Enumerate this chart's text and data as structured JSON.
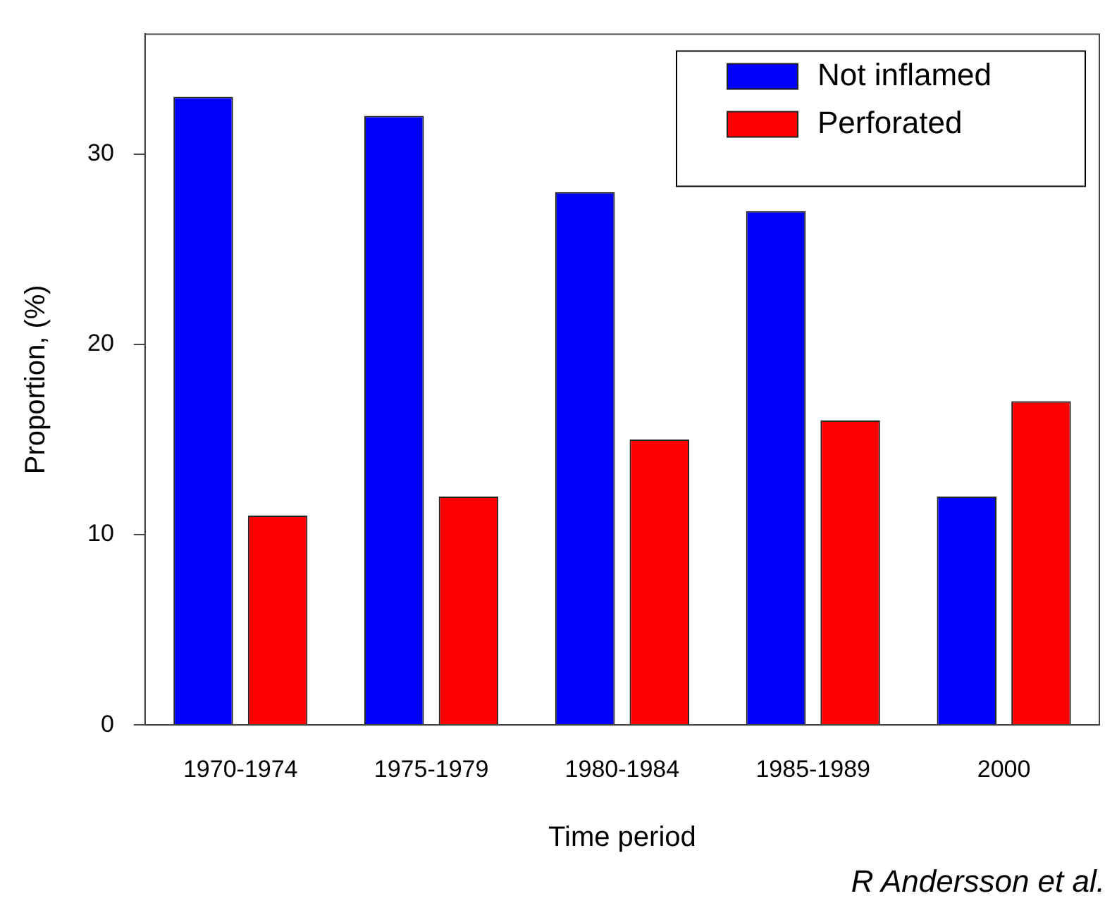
{
  "chart_data": {
    "type": "bar",
    "xlabel": "Time period",
    "ylabel": "Proportion, (%)",
    "categories": [
      "1970-1974",
      "1975-1979",
      "1980-1984",
      "1985-1989",
      "2000"
    ],
    "series": [
      {
        "name": "Not inflamed",
        "color": "#0000ff",
        "values": [
          33,
          32,
          28,
          27,
          12
        ]
      },
      {
        "name": "Perforated",
        "color": "#ff0000",
        "values": [
          11,
          12,
          15,
          16,
          17
        ]
      }
    ],
    "ylim": [
      0,
      36.3
    ],
    "yticks": [
      0,
      10,
      20,
      30
    ],
    "grid": false,
    "legend": "top right",
    "annotations": [
      "R Andersson et al."
    ]
  }
}
